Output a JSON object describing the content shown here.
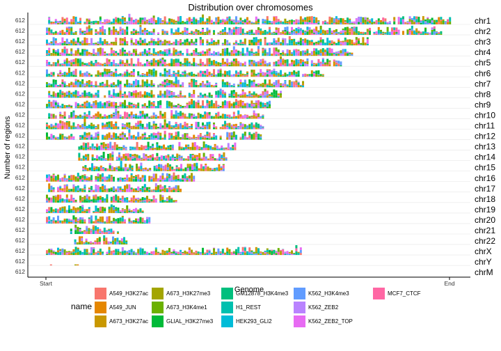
{
  "chart_data": {
    "type": "bar",
    "title": "Distribution over chromosomes",
    "xlabel": "Genome",
    "ylabel": "Number of regions",
    "x_ticks": [
      "Start",
      "End"
    ],
    "y_tick_label": "612",
    "grid": true,
    "legend_placement": "bottom",
    "legend_title": "name",
    "chromosomes": [
      "chr1",
      "chr2",
      "chr3",
      "chr4",
      "chr5",
      "chr6",
      "chr7",
      "chr8",
      "chr9",
      "chr10",
      "chr11",
      "chr12",
      "chr13",
      "chr14",
      "chr15",
      "chr16",
      "chr17",
      "chr18",
      "chr19",
      "chr20",
      "chr21",
      "chr22",
      "chrX",
      "chrY",
      "chrM"
    ],
    "chrom_extent": [
      [
        0.0,
        1.0
      ],
      [
        0.0,
        0.978
      ],
      [
        0.0,
        0.8
      ],
      [
        0.0,
        0.76
      ],
      [
        0.0,
        0.73
      ],
      [
        0.0,
        0.69
      ],
      [
        0.0,
        0.64
      ],
      [
        0.0,
        0.585
      ],
      [
        0.0,
        0.555
      ],
      [
        0.0,
        0.54
      ],
      [
        0.0,
        0.54
      ],
      [
        0.0,
        0.535
      ],
      [
        0.08,
        0.47
      ],
      [
        0.08,
        0.45
      ],
      [
        0.09,
        0.44
      ],
      [
        0.0,
        0.365
      ],
      [
        0.0,
        0.34
      ],
      [
        0.0,
        0.325
      ],
      [
        0.0,
        0.24
      ],
      [
        0.0,
        0.255
      ],
      [
        0.06,
        0.18
      ],
      [
        0.07,
        0.2
      ],
      [
        0.0,
        0.635
      ],
      [
        0.01,
        0.1
      ],
      [
        0.0,
        0.0
      ]
    ],
    "series": [
      {
        "name": "A549_H3K27ac",
        "color": "#F8766D"
      },
      {
        "name": "A549_JUN",
        "color": "#E58700"
      },
      {
        "name": "A673_H3K27ac",
        "color": "#C99800"
      },
      {
        "name": "A673_H3K27me3",
        "color": "#A3A500"
      },
      {
        "name": "A673_H3K4me1",
        "color": "#6BB100"
      },
      {
        "name": "GLIAL_H3K27me3",
        "color": "#00BA38"
      },
      {
        "name": "GM12878_H3K4me3",
        "color": "#00BF7D"
      },
      {
        "name": "H1_REST",
        "color": "#00C0AF"
      },
      {
        "name": "HEK293_GLI2",
        "color": "#00BCD8"
      },
      {
        "name": "K562_H3K4me3",
        "color": "#619CFF"
      },
      {
        "name": "K562_ZEB2",
        "color": "#B983FF"
      },
      {
        "name": "K562_ZEB2_TOP",
        "color": "#E76BF3"
      },
      {
        "name": "MCF7_CTCF",
        "color": "#FF67A4"
      }
    ]
  }
}
